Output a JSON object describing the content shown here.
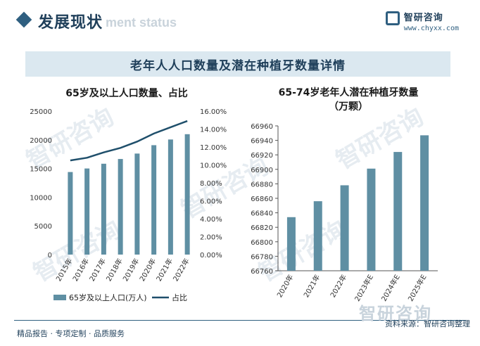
{
  "header": {
    "section_title": "发展现状",
    "section_subtitle": "ment status",
    "brand_name": "智研咨询",
    "brand_url": "www.chyxx.com"
  },
  "banner_title": "老年人人口数量及潜在种植牙数量详情",
  "watermark": "智研咨询",
  "footer": {
    "left": "精品报告 · 专项定制 · 品质服务",
    "right": "资料来源：智研咨询整理"
  },
  "colors": {
    "bar": "#5f8fa3",
    "line": "#1f4f6b",
    "accent": "#2f5f80"
  },
  "chart_data": [
    {
      "type": "bar+line",
      "title": "65岁及以上人口数量、占比",
      "categories": [
        "2015年",
        "2016年",
        "2017年",
        "2018年",
        "2019年",
        "2020年",
        "2021年",
        "2022年"
      ],
      "series": [
        {
          "name": "65岁及以上人口(万人)",
          "type": "bar",
          "axis": "left",
          "values": [
            14386,
            15003,
            15831,
            16658,
            17603,
            19064,
            20056,
            20978
          ]
        },
        {
          "name": "占比",
          "type": "line",
          "axis": "right",
          "values": [
            10.5,
            10.8,
            11.4,
            11.9,
            12.6,
            13.5,
            14.2,
            14.9
          ]
        }
      ],
      "y_left": {
        "ylim": [
          0,
          25000
        ],
        "ticks": [
          "0",
          "5000",
          "10000",
          "15000",
          "20000",
          "25000"
        ]
      },
      "y_right": {
        "ylim": [
          0,
          16
        ],
        "ticks": [
          "0.00%",
          "2.00%",
          "4.00%",
          "6.00%",
          "8.00%",
          "10.00%",
          "12.00%",
          "14.00%",
          "16.00%"
        ]
      },
      "legend": "bottom",
      "grid": false
    },
    {
      "type": "bar",
      "title": "65-74岁老年人潜在种植牙数量",
      "title_line2": "（万颗）",
      "categories": [
        "2020年",
        "2021年",
        "2022年",
        "2023年E",
        "2024年E",
        "2025年E"
      ],
      "values": [
        66834,
        66856,
        66878,
        66901,
        66924,
        66947
      ],
      "ylim": [
        66760,
        66960
      ],
      "ticks": [
        "66760",
        "66780",
        "66800",
        "66820",
        "66840",
        "66860",
        "66880",
        "66900",
        "66920",
        "66940",
        "66960"
      ],
      "grid": false
    }
  ]
}
